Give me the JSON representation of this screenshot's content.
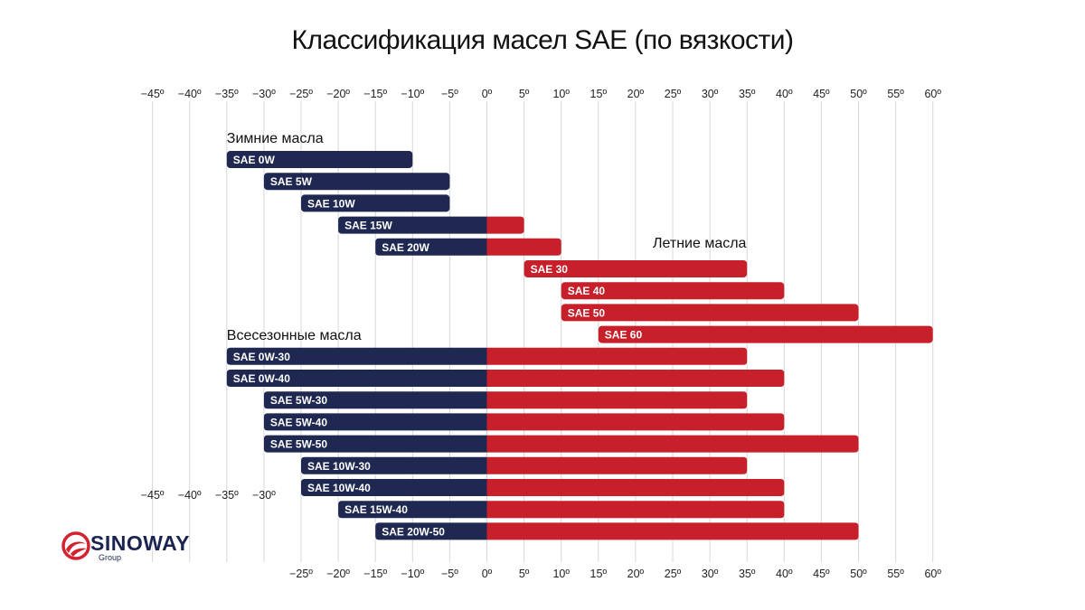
{
  "chart_data": {
    "type": "bar",
    "title": "Классификация масел SAE (по вязкости)",
    "xlim": [
      -45,
      60
    ],
    "x_ticks": [
      -45,
      -40,
      -35,
      -30,
      -25,
      -20,
      -15,
      -10,
      -5,
      0,
      5,
      10,
      15,
      20,
      25,
      30,
      35,
      40,
      45,
      50,
      55,
      60
    ],
    "tick_labels_top": [
      "−45º",
      "−40º",
      "−35º",
      "−30º",
      "−25º",
      "−20º",
      "−15º",
      "−10º",
      "−5º",
      "0º",
      "5º",
      "10º",
      "15º",
      "20º",
      "25º",
      "30º",
      "35º",
      "40º",
      "45º",
      "50º",
      "55º",
      "60º"
    ],
    "tick_labels_mid": [
      "−45º",
      "−40º",
      "−35º",
      "−30º"
    ],
    "tick_labels_bottom": [
      "−25º",
      "−20º",
      "−15º",
      "−10º",
      "−5º",
      "0º",
      "5º",
      "10º",
      "15º",
      "20º",
      "25º",
      "30º",
      "35º",
      "40º",
      "45º",
      "50º",
      "55º",
      "60º"
    ],
    "grid": true,
    "colors": {
      "cold": "#1e2851",
      "warm": "#c8202b"
    },
    "groups": [
      {
        "label": "Зимние масла",
        "before_bar": 0
      },
      {
        "label": "Летние масла",
        "before_bar": 4
      },
      {
        "label": "Всесезонные масла",
        "before_bar": 9
      }
    ],
    "bars": [
      {
        "label": "SAE 0W",
        "min": -35,
        "max": -10
      },
      {
        "label": "SAE 5W",
        "min": -30,
        "max": -5
      },
      {
        "label": "SAE 10W",
        "min": -25,
        "max": -5
      },
      {
        "label": "SAE 15W",
        "min": -20,
        "max": 5
      },
      {
        "label": "SAE 20W",
        "min": -15,
        "max": 10
      },
      {
        "label": "SAE 30",
        "min": 5,
        "max": 35
      },
      {
        "label": "SAE 40",
        "min": 10,
        "max": 40
      },
      {
        "label": "SAE 50",
        "min": 10,
        "max": 50
      },
      {
        "label": "SAE 60",
        "min": 15,
        "max": 60
      },
      {
        "label": "SAE 0W-30",
        "min": -35,
        "max": 35
      },
      {
        "label": "SAE 0W-40",
        "min": -35,
        "max": 40
      },
      {
        "label": "SAE 5W-30",
        "min": -30,
        "max": 35
      },
      {
        "label": "SAE 5W-40",
        "min": -30,
        "max": 40
      },
      {
        "label": "SAE 5W-50",
        "min": -30,
        "max": 50
      },
      {
        "label": "SAE 10W-30",
        "min": -25,
        "max": 35
      },
      {
        "label": "SAE 10W-40",
        "min": -25,
        "max": 40
      },
      {
        "label": "SAE 15W-40",
        "min": -20,
        "max": 40
      },
      {
        "label": "SAE 20W-50",
        "min": -15,
        "max": 50
      }
    ]
  },
  "logo": {
    "name": "SINOWAY",
    "sub": "Group"
  }
}
